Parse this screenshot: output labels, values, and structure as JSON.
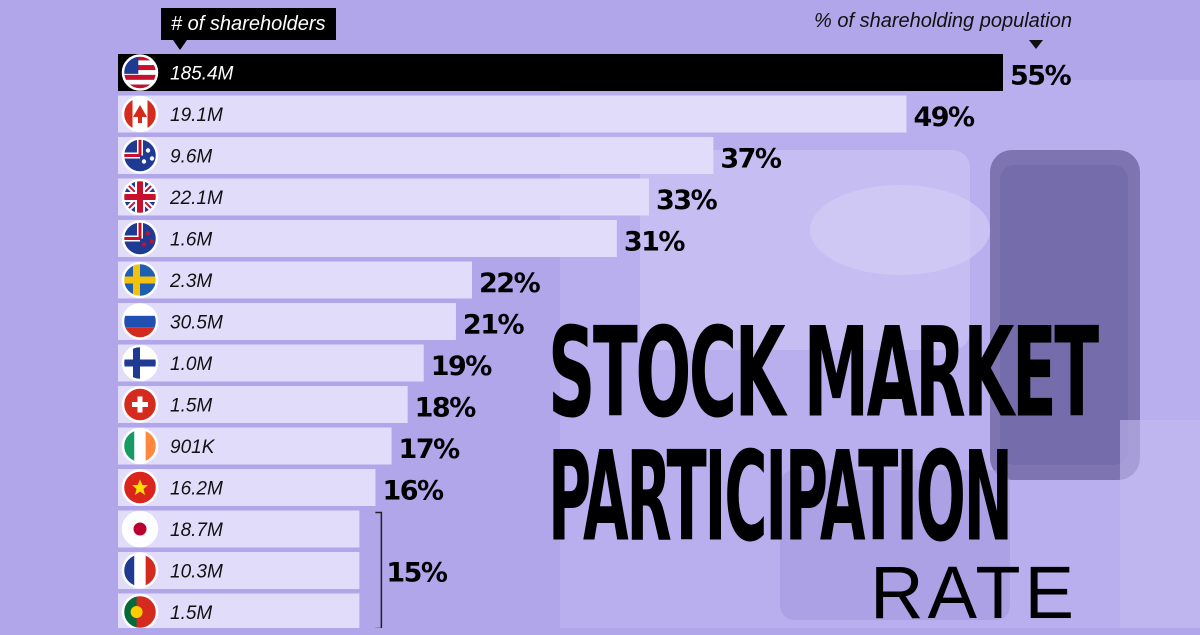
{
  "header": {
    "shareholders_label": "# of shareholders",
    "population_label": "% of shareholding population"
  },
  "title": {
    "line1": "STOCK MARKET",
    "line2": "PARTICIPATION",
    "line3": "RATE"
  },
  "colors": {
    "background": "#b1a6ea",
    "bar": "#e2dcfb",
    "bar_highlight": "#000000",
    "text": "#111111"
  },
  "chart_data": {
    "type": "bar",
    "orientation": "horizontal",
    "categories": [
      "United States",
      "Canada",
      "Australia",
      "United Kingdom",
      "New Zealand",
      "Sweden",
      "Russia",
      "Finland",
      "Switzerland",
      "Ireland",
      "Vietnam",
      "Japan",
      "France",
      "Portugal"
    ],
    "flags": [
      "us-flag-icon",
      "canada-flag-icon",
      "australia-flag-icon",
      "uk-flag-icon",
      "new-zealand-flag-icon",
      "sweden-flag-icon",
      "russia-flag-icon",
      "finland-flag-icon",
      "switzerland-flag-icon",
      "ireland-flag-icon",
      "vietnam-flag-icon",
      "japan-flag-icon",
      "france-flag-icon",
      "portugal-flag-icon"
    ],
    "shareholders": [
      "185.4M",
      "19.1M",
      "9.6M",
      "22.1M",
      "1.6M",
      "2.3M",
      "30.5M",
      "1.0M",
      "1.5M",
      "901K",
      "16.2M",
      "18.7M",
      "10.3M",
      "1.5M"
    ],
    "values": [
      55,
      49,
      37,
      33,
      31,
      22,
      21,
      19,
      18,
      17,
      16,
      15,
      15,
      15
    ],
    "value_labels": [
      "55%",
      "49%",
      "37%",
      "33%",
      "31%",
      "22%",
      "21%",
      "19%",
      "18%",
      "17%",
      "16%",
      "",
      "15%",
      ""
    ],
    "grouped_label": {
      "label": "15%",
      "rows": [
        11,
        13
      ]
    },
    "title": "STOCK MARKET PARTICIPATION RATE",
    "xlabel": "% of shareholding population",
    "ylabel": "",
    "xlim": [
      0,
      55
    ]
  }
}
